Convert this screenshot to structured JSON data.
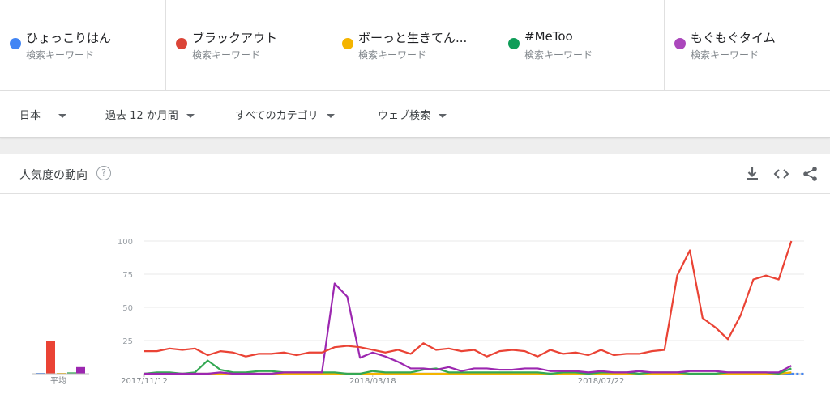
{
  "terms": [
    {
      "name": "ひょっこりはん",
      "sub": "検索キーワード",
      "color": "#4285f4"
    },
    {
      "name": "ブラックアウト",
      "sub": "検索キーワード",
      "color": "#db4437"
    },
    {
      "name": "ボーっと生きてん...",
      "sub": "検索キーワード",
      "color": "#f4b400"
    },
    {
      "name": "#MeToo",
      "sub": "検索キーワード",
      "color": "#0f9d58"
    },
    {
      "name": "もぐもぐタイム",
      "sub": "検索キーワード",
      "color": "#ab47bc"
    }
  ],
  "filters": {
    "region": "日本",
    "period": "過去 12 か月間",
    "category": "すべてのカテゴリ",
    "search_type": "ウェブ検索"
  },
  "card": {
    "title": "人気度の動向",
    "help_glyph": "?",
    "icons": [
      "download-icon",
      "embed-icon",
      "share-icon"
    ]
  },
  "chart_data": {
    "type": "line",
    "y_ticks": [
      "100",
      "75",
      "50",
      "25"
    ],
    "ylim": [
      0,
      100
    ],
    "x_tick_labels": [
      {
        "label": "2017/11/12",
        "index": 0
      },
      {
        "label": "2018/03/18",
        "index": 18
      },
      {
        "label": "2018/07/22",
        "index": 36
      }
    ],
    "grid": true,
    "legend": "top",
    "series": [
      {
        "name": "ひょっこりはん",
        "color": "#4285f4",
        "values": [
          0,
          0,
          0,
          0,
          0,
          0,
          0,
          0,
          0,
          0,
          0,
          0,
          0,
          0,
          0,
          0,
          0,
          0,
          0,
          0,
          0,
          0,
          0,
          0,
          0,
          0,
          0,
          0,
          0,
          0,
          0,
          0,
          0,
          0,
          0,
          0,
          0,
          0,
          0,
          0,
          0,
          0,
          0,
          0,
          0,
          0,
          0,
          0,
          0,
          0,
          0,
          0,
          0
        ]
      },
      {
        "name": "ブラックアウト",
        "color": "#ea4335",
        "values": [
          17,
          17,
          19,
          18,
          19,
          14,
          17,
          16,
          13,
          15,
          15,
          16,
          14,
          16,
          16,
          20,
          21,
          20,
          18,
          16,
          18,
          15,
          23,
          18,
          19,
          17,
          18,
          13,
          17,
          18,
          17,
          13,
          18,
          15,
          16,
          14,
          18,
          14,
          15,
          15,
          17,
          18,
          74,
          93,
          42,
          35,
          26,
          44,
          71,
          74,
          71,
          100
        ]
      },
      {
        "name": "ボーっと生きてん...",
        "color": "#f4b400",
        "values": [
          0,
          0,
          0,
          0,
          0,
          0,
          0,
          0,
          0,
          0,
          0,
          0,
          0,
          0,
          0,
          0,
          0,
          0,
          0,
          0,
          0,
          0,
          0,
          0,
          0,
          0,
          0,
          0,
          0,
          0,
          0,
          0,
          0,
          0,
          0,
          0,
          0,
          0,
          0,
          0,
          0,
          0,
          0,
          0,
          0,
          0,
          0,
          0,
          0,
          0,
          0,
          1
        ]
      },
      {
        "name": "#MeToo",
        "color": "#34a853",
        "values": [
          0,
          1,
          1,
          0,
          1,
          10,
          3,
          1,
          1,
          2,
          2,
          1,
          1,
          1,
          1,
          1,
          0,
          0,
          2,
          1,
          1,
          1,
          3,
          4,
          1,
          1,
          1,
          1,
          1,
          1,
          1,
          1,
          0,
          1,
          1,
          0,
          1,
          1,
          1,
          0,
          1,
          1,
          1,
          0,
          0,
          0,
          1,
          1,
          1,
          1,
          0,
          4
        ]
      },
      {
        "name": "もぐもぐタイム",
        "color": "#9c27b0",
        "values": [
          0,
          0,
          0,
          0,
          0,
          0,
          1,
          0,
          0,
          0,
          0,
          1,
          1,
          1,
          1,
          68,
          58,
          12,
          16,
          13,
          9,
          4,
          4,
          3,
          5,
          2,
          4,
          4,
          3,
          3,
          4,
          4,
          2,
          2,
          2,
          1,
          2,
          1,
          1,
          2,
          1,
          1,
          1,
          2,
          2,
          2,
          1,
          1,
          1,
          1,
          1,
          6
        ]
      }
    ],
    "averages": {
      "label": "平均",
      "values": [
        0,
        25,
        0,
        1,
        5
      ]
    }
  }
}
